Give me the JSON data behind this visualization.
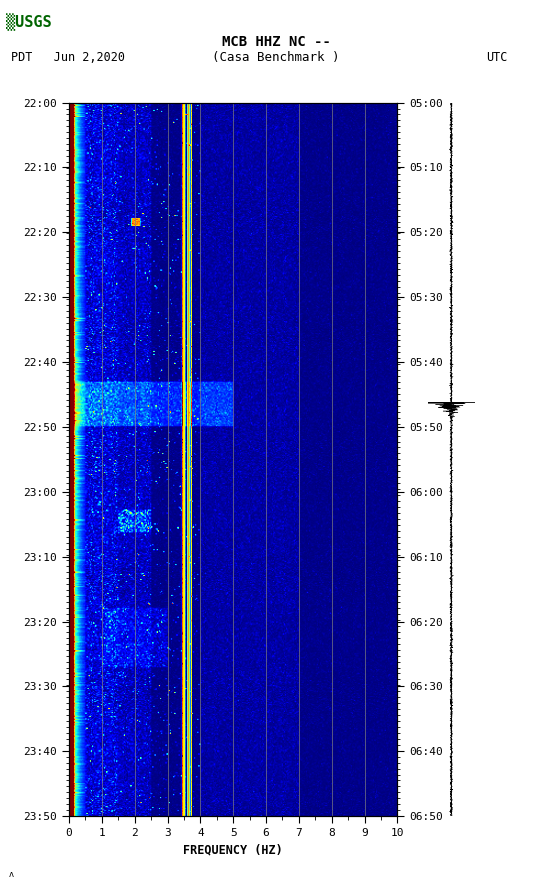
{
  "title_line1": "MCB HHZ NC --",
  "title_line2": "(Casa Benchmark )",
  "left_label": "PDT   Jun 2,2020",
  "right_label": "UTC",
  "xlabel": "FREQUENCY (HZ)",
  "freq_min": 0,
  "freq_max": 10,
  "left_yticks": [
    "22:00",
    "22:10",
    "22:20",
    "22:30",
    "22:40",
    "22:50",
    "23:00",
    "23:10",
    "23:20",
    "23:30",
    "23:40",
    "23:50"
  ],
  "right_yticks": [
    "05:00",
    "05:10",
    "05:20",
    "05:30",
    "05:40",
    "05:50",
    "06:00",
    "06:10",
    "06:20",
    "06:30",
    "06:40",
    "06:50"
  ],
  "xticks": [
    0,
    1,
    2,
    3,
    4,
    5,
    6,
    7,
    8,
    9,
    10
  ],
  "colormap": "jet",
  "fig_width": 5.52,
  "fig_height": 8.92,
  "usgs_logo_color": "#006400",
  "noise_seed": 12345,
  "vline_color": "#808080",
  "yellow_lines": [
    3.5,
    3.65
  ],
  "orange_lines": [
    3.45,
    3.7
  ]
}
